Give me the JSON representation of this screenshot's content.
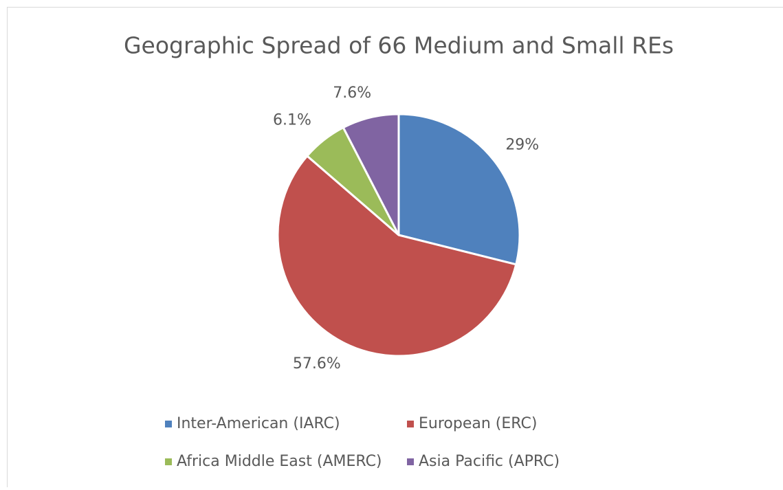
{
  "chart_data": {
    "type": "pie",
    "title": "Geographic Spread of 66 Medium and Small REs",
    "categories": [
      "Inter-American (IARC)",
      "European (ERC)",
      "Africa Middle East (AMERC)",
      "Asia Pacific (APRC)"
    ],
    "values": [
      29,
      57.6,
      6.1,
      7.6
    ],
    "value_labels": [
      "29%",
      "57.6%",
      "6.1%",
      "7.6%"
    ],
    "colors": [
      "#4f81bd",
      "#c0504d",
      "#9bbb59",
      "#8064a2"
    ],
    "legend": "bottom"
  }
}
